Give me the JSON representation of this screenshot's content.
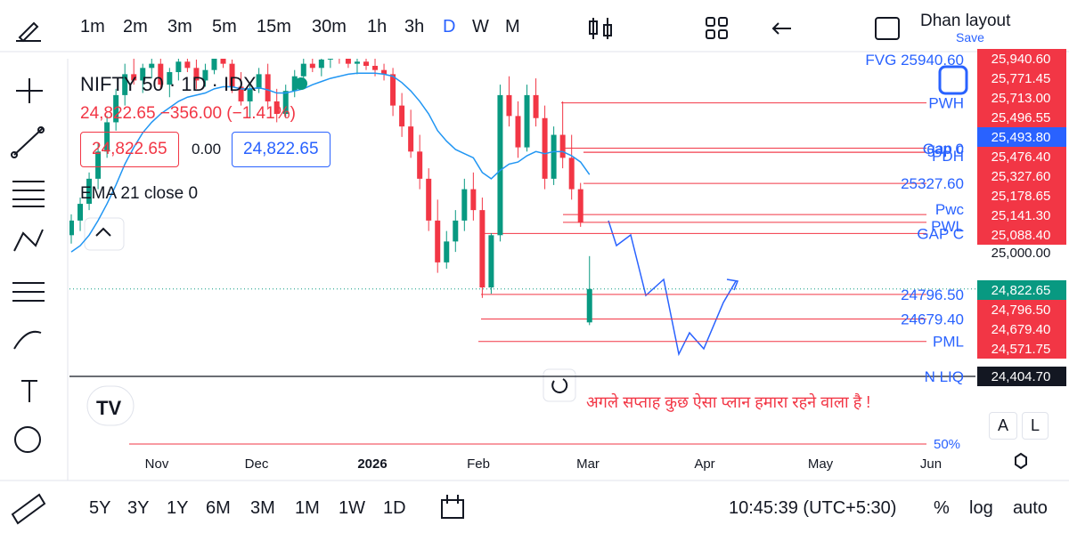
{
  "toolbar": {
    "intervals": [
      "1m",
      "2m",
      "3m",
      "5m",
      "15m",
      "30m",
      "1h",
      "3h",
      "D",
      "W",
      "M"
    ],
    "layout_name": "Dhan layout",
    "layout_save": "Save"
  },
  "legend": {
    "symbol": "NIFTY 50 · 1D · IDX",
    "change": "24,822.65 −356.00 (−1.41%)",
    "sell": "24,822.65",
    "spread": "0.00",
    "buy": "24,822.65",
    "indicator": "EMA 21 close 0"
  },
  "chart": {
    "ylim": [
      24077,
      25924
    ],
    "candles": [
      [
        25080,
        25180,
        25040,
        25150
      ],
      [
        25150,
        25260,
        25100,
        25230
      ],
      [
        25230,
        25380,
        25200,
        25350
      ],
      [
        25350,
        25520,
        25300,
        25480
      ],
      [
        25480,
        25650,
        25450,
        25620
      ],
      [
        25620,
        25780,
        25580,
        25750
      ],
      [
        25750,
        25900,
        25700,
        25850
      ],
      [
        25850,
        25950,
        25800,
        25820
      ],
      [
        25820,
        25900,
        25760,
        25880
      ],
      [
        25880,
        25960,
        25830,
        25900
      ],
      [
        25900,
        25950,
        25780,
        25800
      ],
      [
        25800,
        25880,
        25740,
        25860
      ],
      [
        25860,
        25940,
        25820,
        25910
      ],
      [
        25910,
        25980,
        25860,
        25880
      ],
      [
        25880,
        25920,
        25780,
        25820
      ],
      [
        25820,
        25900,
        25790,
        25870
      ],
      [
        25870,
        25960,
        25850,
        25930
      ],
      [
        25930,
        25990,
        25880,
        25900
      ],
      [
        25900,
        25920,
        25760,
        25790
      ],
      [
        25790,
        25860,
        25700,
        25720
      ],
      [
        25720,
        25800,
        25640,
        25780
      ],
      [
        25780,
        25880,
        25760,
        25850
      ],
      [
        25850,
        25900,
        25690,
        25720
      ],
      [
        25720,
        25780,
        25620,
        25660
      ],
      [
        25660,
        25800,
        25640,
        25770
      ],
      [
        25770,
        25870,
        25740,
        25840
      ],
      [
        25840,
        25930,
        25800,
        25900
      ],
      [
        25900,
        25960,
        25860,
        25880
      ],
      [
        25880,
        25940,
        25840,
        25920
      ],
      [
        25920,
        25990,
        25880,
        25950
      ],
      [
        25950,
        26000,
        25900,
        25930
      ],
      [
        25930,
        25980,
        25880,
        25900
      ],
      [
        25900,
        25950,
        25850,
        25910
      ],
      [
        25910,
        25960,
        25870,
        25890
      ],
      [
        25890,
        25930,
        25840,
        25870
      ],
      [
        25870,
        25900,
        25820,
        25850
      ],
      [
        25850,
        25880,
        25650,
        25700
      ],
      [
        25700,
        25760,
        25550,
        25600
      ],
      [
        25600,
        25680,
        25450,
        25480
      ],
      [
        25480,
        25560,
        25300,
        25350
      ],
      [
        25350,
        25400,
        25100,
        25150
      ],
      [
        25150,
        25250,
        24900,
        24950
      ],
      [
        24950,
        25100,
        24920,
        25050
      ],
      [
        25050,
        25200,
        25000,
        25150
      ],
      [
        25150,
        25350,
        25100,
        25300
      ],
      [
        25300,
        25380,
        25150,
        25200
      ],
      [
        25200,
        25260,
        24780,
        24830
      ],
      [
        24830,
        25090,
        24800,
        25080
      ],
      [
        25080,
        25800,
        25050,
        25750
      ],
      [
        25750,
        25840,
        25600,
        25650
      ],
      [
        25650,
        25720,
        25450,
        25500
      ],
      [
        25500,
        25800,
        25480,
        25750
      ],
      [
        25750,
        25830,
        25600,
        25640
      ],
      [
        25640,
        25700,
        25300,
        25350
      ],
      [
        25350,
        25600,
        25320,
        25560
      ],
      [
        25560,
        25720,
        25400,
        25450
      ],
      [
        25450,
        25560,
        25250,
        25300
      ],
      [
        25300,
        25330,
        25120,
        25140
      ],
      [
        24663,
        24980,
        24650,
        24822.65
      ]
    ],
    "ema": [
      25000,
      25030,
      25080,
      25150,
      25230,
      25320,
      25420,
      25500,
      25570,
      25620,
      25660,
      25690,
      25720,
      25740,
      25750,
      25760,
      25780,
      25790,
      25790,
      25780,
      25780,
      25785,
      25775,
      25760,
      25760,
      25770,
      25780,
      25800,
      25815,
      25830,
      25840,
      25850,
      25855,
      25855,
      25855,
      25850,
      25840,
      25810,
      25770,
      25720,
      25660,
      25580,
      25530,
      25490,
      25470,
      25450,
      25380,
      25350,
      25390,
      25420,
      25430,
      25460,
      25480,
      25470,
      25480,
      25480,
      25460,
      25430,
      25370
    ],
    "last": 24822.65,
    "levels": [
      {
        "label": "PWH",
        "value": 25713.0
      },
      {
        "label": "gap c",
        "value": 25496.55
      },
      {
        "label": "Gap 0",
        "value": 25476.4
      },
      {
        "label": "PDH",
        "value": 25476.4
      },
      {
        "label": "25327.60",
        "value": 25327.6
      },
      {
        "label": "Pwc",
        "value": 25178.65
      },
      {
        "label": "PWL",
        "value": 25141.3
      },
      {
        "label": "GAP C",
        "value": 25088.4
      },
      {
        "label": "24796.50",
        "value": 24796.5
      },
      {
        "label": "24679.40",
        "value": 24679.4
      },
      {
        "label": "PML",
        "value": 24571.75
      },
      {
        "label": "N LIQ",
        "value": 24404.7
      }
    ],
    "top_level": "FVG 25940.60",
    "top_badge": "25,940.60",
    "price_badges": [
      "25,771.45",
      "25,713.00",
      "25,496.55",
      "25,493.80",
      "25,476.40",
      "25,327.60",
      "25,178.65",
      "25,141.30",
      "25,088.40",
      "25,000.00",
      "24,822.65",
      "24,796.50",
      "24,679.40",
      "24,571.75",
      "24,404.70"
    ],
    "months": [
      "Nov",
      "Dec",
      "2026",
      "Feb",
      "Mar",
      "Apr",
      "May",
      "Jun"
    ],
    "note": "अगले  सप्ताह कुछ ऐसा प्लान हमारा रहने वाला है !",
    "scale_label": "50%",
    "btn_a": "A",
    "btn_l": "L"
  },
  "bottom": {
    "ranges": [
      "5Y",
      "3Y",
      "1Y",
      "6M",
      "3M",
      "1M",
      "1W",
      "1D"
    ],
    "time": "10:45:39 (UTC+5:30)",
    "percent": "%",
    "log": "log",
    "auto": "auto"
  }
}
